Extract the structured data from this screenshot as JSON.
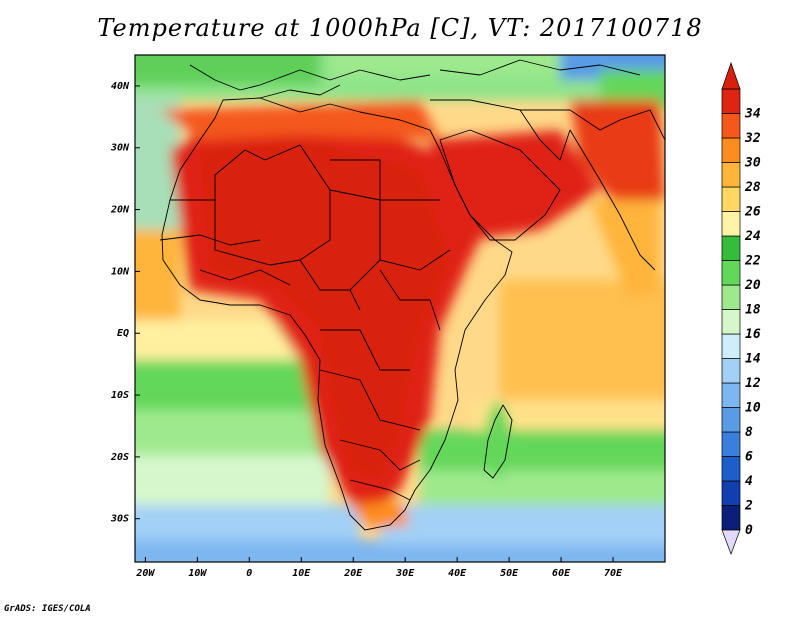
{
  "title": "Temperature at 1000hPa [C], VT: 2017100718",
  "credit": "GrADS: IGES/COLA",
  "map": {
    "projection": "lat-lon",
    "lon_range": [
      -22,
      80
    ],
    "lat_range": [
      -37,
      45
    ],
    "lon_ticks": [
      {
        "value": -20,
        "label": "20W"
      },
      {
        "value": -10,
        "label": "10W"
      },
      {
        "value": 0,
        "label": "0"
      },
      {
        "value": 10,
        "label": "10E"
      },
      {
        "value": 20,
        "label": "20E"
      },
      {
        "value": 30,
        "label": "30E"
      },
      {
        "value": 40,
        "label": "40E"
      },
      {
        "value": 50,
        "label": "50E"
      },
      {
        "value": 60,
        "label": "60E"
      },
      {
        "value": 70,
        "label": "70E"
      }
    ],
    "lat_ticks": [
      {
        "value": 40,
        "label": "40N"
      },
      {
        "value": 30,
        "label": "30N"
      },
      {
        "value": 20,
        "label": "20N"
      },
      {
        "value": 10,
        "label": "10N"
      },
      {
        "value": 0,
        "label": "EQ"
      },
      {
        "value": -10,
        "label": "10S"
      },
      {
        "value": -20,
        "label": "20S"
      },
      {
        "value": -30,
        "label": "30S"
      }
    ],
    "field": "temperature at 1000hPa (C)",
    "border_color": "#000000"
  },
  "colorbar": {
    "levels": [
      0,
      2,
      4,
      6,
      8,
      10,
      12,
      14,
      16,
      18,
      20,
      22,
      24,
      26,
      28,
      30,
      32,
      34
    ],
    "colors": [
      "#0b1f7a",
      "#123fb0",
      "#1e5ec8",
      "#3b7fdc",
      "#5a9be6",
      "#7db6f0",
      "#a2d0f6",
      "#cdeefa",
      "#d6f7cc",
      "#9ee98d",
      "#63d75a",
      "#33bd3a",
      "#fff4a6",
      "#ffd864",
      "#ffb43a",
      "#ff8c1e",
      "#f4581a",
      "#e02414"
    ],
    "under_color": "#e3d9fb",
    "over_color": "#d8200f"
  }
}
